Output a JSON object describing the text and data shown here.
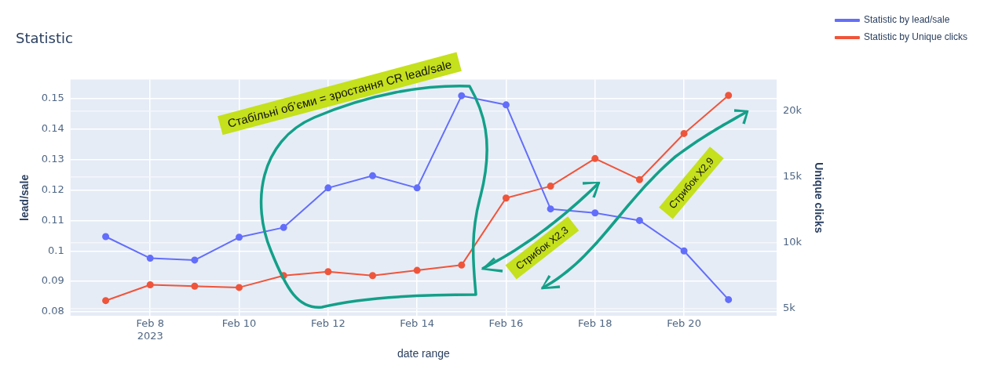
{
  "chart_data": {
    "type": "line",
    "title": "Statistic",
    "xlabel": "date range",
    "ylabel": "lead/sale",
    "y2label": "Unique clicks",
    "x": [
      "2023-02-07",
      "2023-02-08",
      "2023-02-09",
      "2023-02-10",
      "2023-02-11",
      "2023-02-12",
      "2023-02-13",
      "2023-02-14",
      "2023-02-15",
      "2023-02-16",
      "2023-02-17",
      "2023-02-18",
      "2023-02-19",
      "2023-02-20",
      "2023-02-21"
    ],
    "series": [
      {
        "name": "Statistic by lead/sale",
        "color": "#636efa",
        "values": [
          0.1047,
          0.0976,
          0.097,
          0.1045,
          0.1077,
          0.1207,
          0.1247,
          0.1207,
          0.151,
          0.148,
          0.1138,
          0.1125,
          0.11,
          0.1,
          0.084
        ]
      },
      {
        "name": "Statistic by Unique clicks",
        "color": "#ef553b",
        "axis": "y2",
        "values": [
          5600,
          6800,
          6700,
          6600,
          7500,
          7800,
          7500,
          7900,
          8300,
          13400,
          14300,
          16400,
          14800,
          18300,
          21200
        ]
      }
    ],
    "xlim": [
      "2023-02-06T05:00",
      "2023-02-22T02:00"
    ],
    "xticks": [
      {
        "value": "2023-02-08",
        "label": "Feb 8\n2023"
      },
      {
        "value": "2023-02-10",
        "label": "Feb 10"
      },
      {
        "value": "2023-02-12",
        "label": "Feb 12"
      },
      {
        "value": "2023-02-14",
        "label": "Feb 14"
      },
      {
        "value": "2023-02-16",
        "label": "Feb 16"
      },
      {
        "value": "2023-02-18",
        "label": "Feb 18"
      },
      {
        "value": "2023-02-20",
        "label": "Feb 20"
      }
    ],
    "ylim": [
      0.0787,
      0.1563
    ],
    "yticks": [
      0.08,
      0.09,
      0.1,
      0.11,
      0.12,
      0.13,
      0.14,
      0.15
    ],
    "y2lim": [
      4450,
      22400
    ],
    "y2ticks": [
      {
        "value": 5000,
        "label": "5k"
      },
      {
        "value": 10000,
        "label": "10k"
      },
      {
        "value": 15000,
        "label": "15k"
      },
      {
        "value": 20000,
        "label": "20k"
      }
    ],
    "grid": true,
    "legend": "top right",
    "marker": "circle",
    "line_style": "solid",
    "annotations": [
      "Стабільні об’єми = зростання CR lead/sale",
      "Стрибок X2,3",
      "Стрибок X2,9"
    ]
  }
}
